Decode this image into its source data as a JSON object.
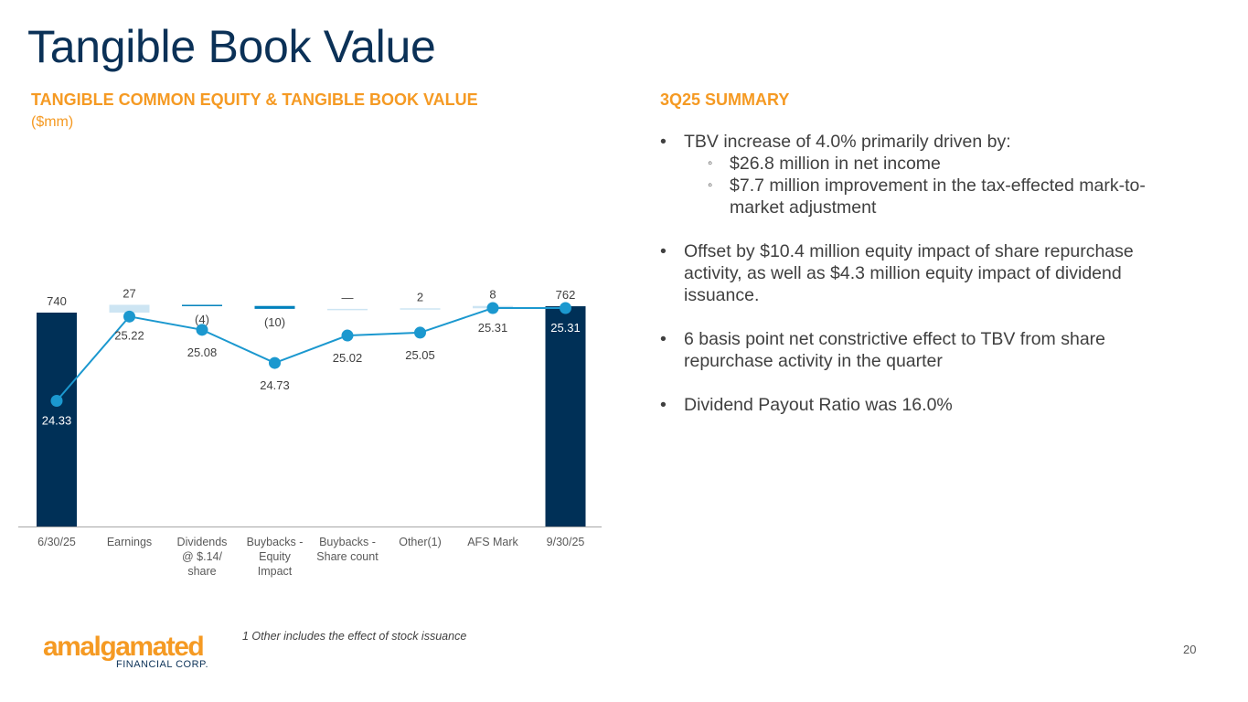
{
  "page": {
    "title": "Tangible Book Value",
    "page_number": "20"
  },
  "chart_section": {
    "heading": "TANGIBLE COMMON EQUITY & TANGIBLE BOOK VALUE",
    "units": "($mm)",
    "footnote": "1 Other includes the effect of stock issuance"
  },
  "summary": {
    "heading": "3Q25 SUMMARY",
    "bullets": [
      {
        "text": "TBV increase of 4.0% primarily driven by:",
        "subs": [
          "$26.8 million in net income",
          "$7.7 million improvement in the tax-effected mark-to-market adjustment"
        ]
      },
      {
        "text": "Offset by $10.4 million equity impact of share repurchase activity, as well as $4.3 million equity impact of dividend issuance."
      },
      {
        "text": "6 basis point net constrictive effect to TBV from share repurchase activity in the quarter"
      },
      {
        "text": "Dividend Payout Ratio was 16.0%"
      }
    ]
  },
  "logo": {
    "name": "amalgamated",
    "sub": "FINANCIAL CORP."
  },
  "chart_data": {
    "type": "bar",
    "subtype": "waterfall-with-line",
    "categories": [
      "6/30/25",
      "Earnings",
      "Dividends @ $.14/ share",
      "Buybacks - Equity Impact",
      "Buybacks - Share count",
      "Other(1)",
      "AFS Mark",
      "9/30/25"
    ],
    "bar_values": [
      740,
      27,
      -4,
      -10,
      0,
      2,
      8,
      762
    ],
    "bar_labels": [
      "740",
      "27",
      "(4)",
      "(10)",
      "—",
      "2",
      "8",
      "762"
    ],
    "bar_kinds": [
      "total",
      "increase",
      "decrease",
      "decrease",
      "increase",
      "increase",
      "increase",
      "total"
    ],
    "line": {
      "values": [
        24.33,
        25.22,
        25.08,
        24.73,
        25.02,
        25.05,
        25.31,
        25.31
      ],
      "labels": [
        "24.33",
        "25.22",
        "25.08",
        "24.73",
        "25.02",
        "25.05",
        "25.31",
        "25.31"
      ]
    },
    "colors": {
      "total": "#003057",
      "increase": "#cde5f3",
      "decrease": "#0081bc",
      "line": "#1b98cf",
      "axis": "#a6a6a6"
    },
    "grid": false,
    "legend": "none"
  }
}
